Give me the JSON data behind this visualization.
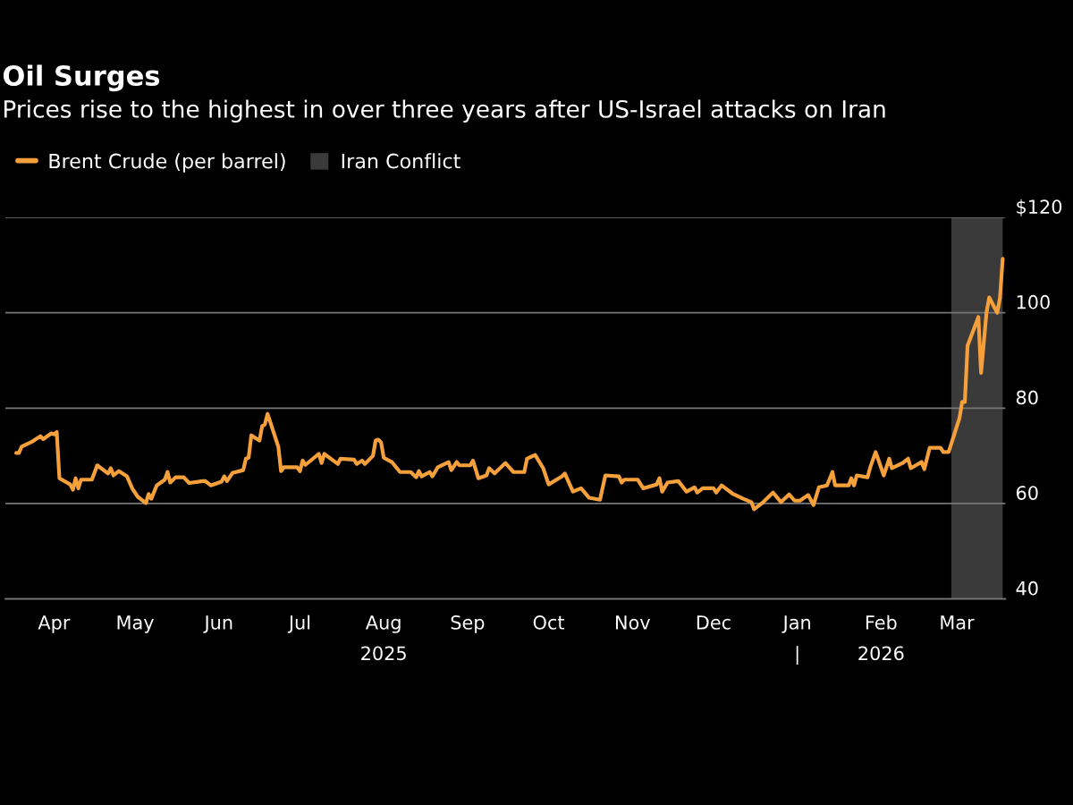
{
  "chart_data": {
    "type": "line",
    "title": "Oil Surges",
    "subtitle": "Prices rise to the highest in over three years after US-Israel attacks on Iran",
    "x": [
      "2025-03-18",
      "2025-03-19",
      "2025-03-20",
      "2025-03-24",
      "2025-03-25",
      "2025-03-27",
      "2025-03-28",
      "2025-03-31",
      "2025-04-01",
      "2025-04-02",
      "2025-04-03",
      "2025-04-07",
      "2025-04-08",
      "2025-04-09",
      "2025-04-10",
      "2025-04-11",
      "2025-04-15",
      "2025-04-17",
      "2025-04-21",
      "2025-04-22",
      "2025-04-23",
      "2025-04-25",
      "2025-04-28",
      "2025-04-30",
      "2025-05-02",
      "2025-05-05",
      "2025-05-06",
      "2025-05-07",
      "2025-05-09",
      "2025-05-12",
      "2025-05-13",
      "2025-05-14",
      "2025-05-16",
      "2025-05-19",
      "2025-05-21",
      "2025-05-26",
      "2025-05-27",
      "2025-05-29",
      "2025-06-02",
      "2025-06-03",
      "2025-06-04",
      "2025-06-06",
      "2025-06-10",
      "2025-06-11",
      "2025-06-12",
      "2025-06-13",
      "2025-06-16",
      "2025-06-17",
      "2025-06-18",
      "2025-06-19",
      "2025-06-23",
      "2025-06-24",
      "2025-06-25",
      "2025-06-30",
      "2025-07-01",
      "2025-07-02",
      "2025-07-03",
      "2025-07-08",
      "2025-07-09",
      "2025-07-10",
      "2025-07-15",
      "2025-07-16",
      "2025-07-21",
      "2025-07-22",
      "2025-07-24",
      "2025-07-25",
      "2025-07-28",
      "2025-07-29",
      "2025-07-30",
      "2025-07-31",
      "2025-08-01",
      "2025-08-04",
      "2025-08-07",
      "2025-08-11",
      "2025-08-13",
      "2025-08-14",
      "2025-08-15",
      "2025-08-18",
      "2025-08-19",
      "2025-08-21",
      "2025-08-25",
      "2025-08-26",
      "2025-08-28",
      "2025-08-29",
      "2025-09-02",
      "2025-09-03",
      "2025-09-05",
      "2025-09-08",
      "2025-09-09",
      "2025-09-11",
      "2025-09-15",
      "2025-09-18",
      "2025-09-22",
      "2025-09-23",
      "2025-09-26",
      "2025-09-29",
      "2025-10-01",
      "2025-10-06",
      "2025-10-07",
      "2025-10-10",
      "2025-10-13",
      "2025-10-16",
      "2025-10-20",
      "2025-10-22",
      "2025-10-27",
      "2025-10-28",
      "2025-10-29",
      "2025-11-03",
      "2025-11-05",
      "2025-11-10",
      "2025-11-11",
      "2025-11-12",
      "2025-11-14",
      "2025-11-18",
      "2025-11-21",
      "2025-11-24",
      "2025-11-25",
      "2025-11-27",
      "2025-12-01",
      "2025-12-02",
      "2025-12-04",
      "2025-12-08",
      "2025-12-12",
      "2025-12-15",
      "2025-12-16",
      "2025-12-19",
      "2025-12-23",
      "2025-12-26",
      "2025-12-29",
      "2025-12-31",
      "2026-01-02",
      "2026-01-05",
      "2026-01-07",
      "2026-01-09",
      "2026-01-12",
      "2026-01-14",
      "2026-01-15",
      "2026-01-20",
      "2026-01-21",
      "2026-01-22",
      "2026-01-23",
      "2026-01-27",
      "2026-01-28",
      "2026-01-30",
      "2026-02-02",
      "2026-02-04",
      "2026-02-05",
      "2026-02-09",
      "2026-02-11",
      "2026-02-12",
      "2026-02-16",
      "2026-02-17",
      "2026-02-19",
      "2026-02-23",
      "2026-02-24",
      "2026-02-26",
      "2026-03-02",
      "2026-03-03",
      "2026-03-04",
      "2026-03-05",
      "2026-03-09",
      "2026-03-10",
      "2026-03-12",
      "2026-03-13",
      "2026-03-16",
      "2026-03-17",
      "2026-03-18"
    ],
    "series": [
      {
        "name": "Brent Crude (per barrel)",
        "color": "#f5a03a",
        "values": [
          70.6,
          70.6,
          71.9,
          73.0,
          73.4,
          74.1,
          73.5,
          74.7,
          74.5,
          75.0,
          65.3,
          64.0,
          62.9,
          65.3,
          63.2,
          65.0,
          65.0,
          68.0,
          66.3,
          67.4,
          65.9,
          66.8,
          65.7,
          63.1,
          61.4,
          60.1,
          62.0,
          61.0,
          63.8,
          65.0,
          66.6,
          64.4,
          65.5,
          65.5,
          64.3,
          64.7,
          64.7,
          63.8,
          64.6,
          65.7,
          64.7,
          66.4,
          67.0,
          69.4,
          69.6,
          74.3,
          73.2,
          76.2,
          76.6,
          78.8,
          71.9,
          66.8,
          67.6,
          67.6,
          66.8,
          69.0,
          68.1,
          70.4,
          68.5,
          70.4,
          68.3,
          69.4,
          69.2,
          68.3,
          69.0,
          68.3,
          70.0,
          73.2,
          73.4,
          72.8,
          69.6,
          68.7,
          66.6,
          66.6,
          65.5,
          66.8,
          65.7,
          66.6,
          65.7,
          67.6,
          68.7,
          67.0,
          68.7,
          68.0,
          68.0,
          69.0,
          65.3,
          65.9,
          67.4,
          66.3,
          68.5,
          66.6,
          66.6,
          69.4,
          70.2,
          67.4,
          64.0,
          65.7,
          66.3,
          62.5,
          63.2,
          61.2,
          60.8,
          65.9,
          65.7,
          64.4,
          65.0,
          65.0,
          63.2,
          64.0,
          65.3,
          62.5,
          64.4,
          64.7,
          62.5,
          63.4,
          62.3,
          63.2,
          63.2,
          62.3,
          63.8,
          62.1,
          61.0,
          60.3,
          58.8,
          60.1,
          62.3,
          60.3,
          61.9,
          60.6,
          60.6,
          61.8,
          59.7,
          63.4,
          63.8,
          66.6,
          63.8,
          63.8,
          65.3,
          63.8,
          65.9,
          65.5,
          67.6,
          70.8,
          65.9,
          69.4,
          67.4,
          68.5,
          69.4,
          67.4,
          68.7,
          67.2,
          71.7,
          71.7,
          70.8,
          70.8,
          77.9,
          81.3,
          81.3,
          93.1,
          99.1,
          87.4,
          100.0,
          103.2,
          100.0,
          103.2,
          111.3
        ]
      }
    ],
    "bands": [
      {
        "axis": "x",
        "from": "2026-02-27",
        "to": "2026-03-18",
        "label": "Iran Conflict",
        "color": "#3a3a3a"
      }
    ],
    "xlim": [
      "2025-03-14",
      "2026-03-19"
    ],
    "xticks": [
      {
        "value": "2025-04-01",
        "label": "Apr"
      },
      {
        "value": "2025-05-01",
        "label": "May"
      },
      {
        "value": "2025-06-01",
        "label": "Jun"
      },
      {
        "value": "2025-07-01",
        "label": "Jul"
      },
      {
        "value": "2025-08-01",
        "label": "Aug\n2025"
      },
      {
        "value": "2025-09-01",
        "label": "Sep"
      },
      {
        "value": "2025-10-01",
        "label": "Oct"
      },
      {
        "value": "2025-11-01",
        "label": "Nov"
      },
      {
        "value": "2025-12-01",
        "label": "Dec"
      },
      {
        "value": "2026-01-01",
        "label": "Jan\n|"
      },
      {
        "value": "2026-02-01",
        "label": "Feb\n2026"
      },
      {
        "value": "2026-03-01",
        "label": "Mar"
      }
    ],
    "ylim": [
      40,
      120
    ],
    "yticks": [
      40,
      60,
      80,
      100,
      {
        "value": 120,
        "label": "$120"
      }
    ],
    "grid": "y",
    "legend": "top left",
    "marker": "none",
    "line_style": "solid"
  }
}
